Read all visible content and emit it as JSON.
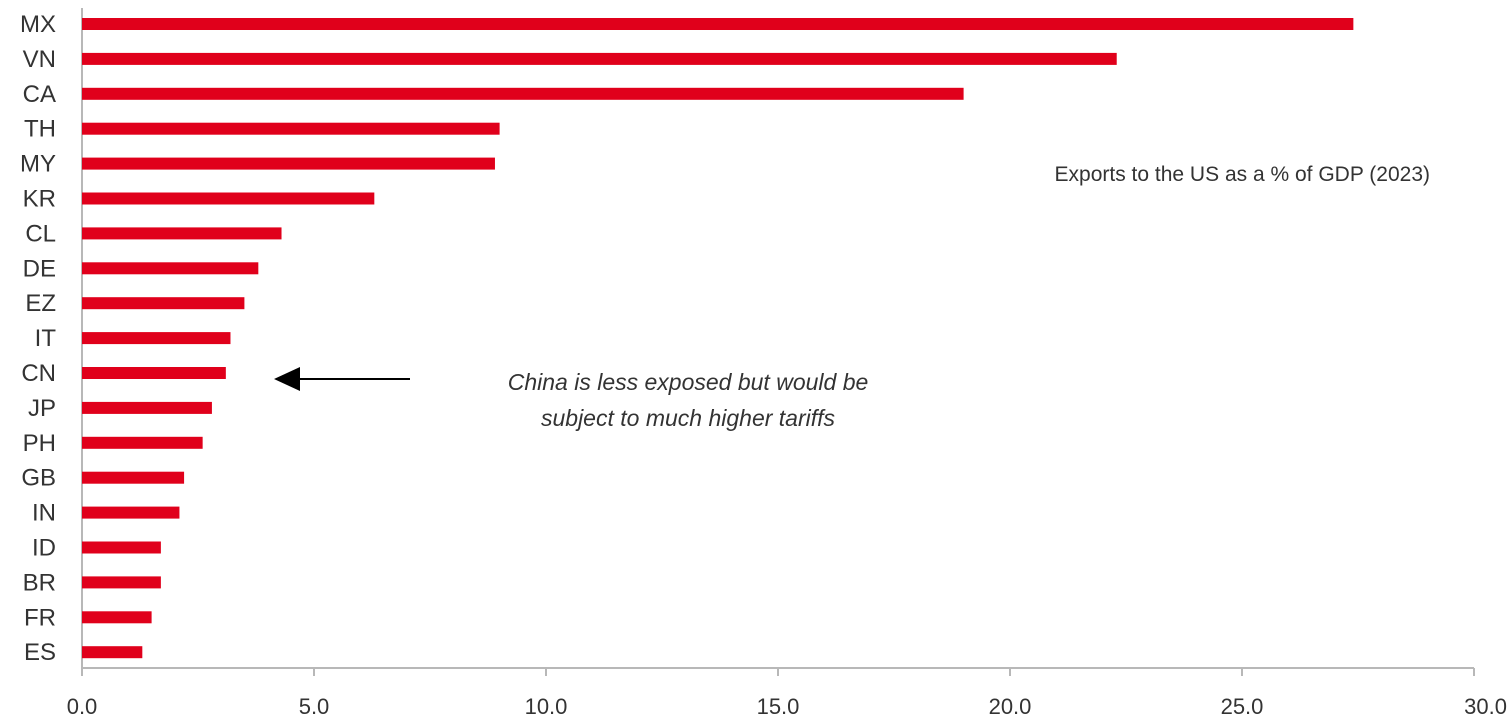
{
  "chart_data": {
    "type": "bar",
    "orientation": "horizontal",
    "categories": [
      "MX",
      "VN",
      "CA",
      "TH",
      "MY",
      "KR",
      "CL",
      "DE",
      "EZ",
      "IT",
      "CN",
      "JP",
      "PH",
      "GB",
      "IN",
      "ID",
      "BR",
      "FR",
      "ES"
    ],
    "values": [
      27.4,
      22.3,
      19.0,
      9.0,
      8.9,
      6.3,
      4.3,
      3.8,
      3.5,
      3.2,
      3.1,
      2.8,
      2.6,
      2.2,
      2.1,
      1.7,
      1.7,
      1.5,
      1.3
    ],
    "series_label": "Exports to the US as a % of GDP (2023)",
    "xlim": [
      0,
      30
    ],
    "xticks": [
      "0.0",
      "5.0",
      "10.0",
      "15.0",
      "20.0",
      "25.0",
      "30.0"
    ],
    "grid": false,
    "legend_position": "top-right",
    "bar_color": "#e0001b",
    "annotation": {
      "lines": [
        "China is less exposed but would be",
        "subject to much higher tariffs"
      ],
      "points_to": "CN"
    }
  }
}
